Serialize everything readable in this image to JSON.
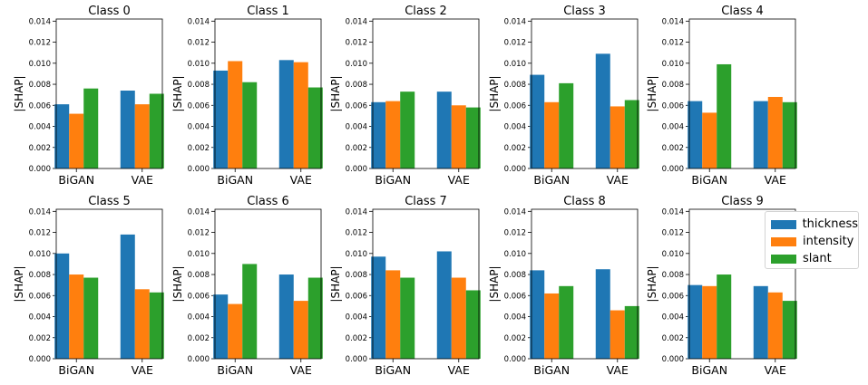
{
  "chart_data": {
    "type": "bar",
    "ylabel": "|SHAP|",
    "ylim": [
      0,
      0.0142
    ],
    "yticks": [
      "0.000",
      "0.002",
      "0.004",
      "0.006",
      "0.008",
      "0.010",
      "0.012",
      "0.014"
    ],
    "categories": [
      "BiGAN",
      "VAE"
    ],
    "series_names": [
      "thickness",
      "intensity",
      "slant"
    ],
    "series_colors": [
      "#1f77b4",
      "#ff7f0e",
      "#2ca02c"
    ],
    "legend_position": "right",
    "panels": [
      {
        "title": "Class 0",
        "values": {
          "BiGAN": [
            0.0061,
            0.0052,
            0.0076
          ],
          "VAE": [
            0.0074,
            0.0061,
            0.0071
          ]
        }
      },
      {
        "title": "Class 1",
        "values": {
          "BiGAN": [
            0.0093,
            0.0102,
            0.0082
          ],
          "VAE": [
            0.0103,
            0.0101,
            0.0077
          ]
        }
      },
      {
        "title": "Class 2",
        "values": {
          "BiGAN": [
            0.0063,
            0.0064,
            0.0073
          ],
          "VAE": [
            0.0073,
            0.006,
            0.0058
          ]
        }
      },
      {
        "title": "Class 3",
        "values": {
          "BiGAN": [
            0.0089,
            0.0063,
            0.0081
          ],
          "VAE": [
            0.0109,
            0.0059,
            0.0065
          ]
        }
      },
      {
        "title": "Class 4",
        "values": {
          "BiGAN": [
            0.0064,
            0.0053,
            0.0099
          ],
          "VAE": [
            0.0064,
            0.0068,
            0.0063
          ]
        }
      },
      {
        "title": "Class 5",
        "values": {
          "BiGAN": [
            0.01,
            0.008,
            0.0077
          ],
          "VAE": [
            0.0118,
            0.0066,
            0.0063
          ]
        }
      },
      {
        "title": "Class 6",
        "values": {
          "BiGAN": [
            0.0061,
            0.0052,
            0.009
          ],
          "VAE": [
            0.008,
            0.0055,
            0.0077
          ]
        }
      },
      {
        "title": "Class 7",
        "values": {
          "BiGAN": [
            0.0097,
            0.0084,
            0.0077
          ],
          "VAE": [
            0.0102,
            0.0077,
            0.0065
          ]
        }
      },
      {
        "title": "Class 8",
        "values": {
          "BiGAN": [
            0.0084,
            0.0062,
            0.0069
          ],
          "VAE": [
            0.0085,
            0.0046,
            0.005
          ]
        }
      },
      {
        "title": "Class 9",
        "values": {
          "BiGAN": [
            0.007,
            0.0069,
            0.008
          ],
          "VAE": [
            0.0069,
            0.0063,
            0.0055
          ]
        }
      }
    ]
  }
}
